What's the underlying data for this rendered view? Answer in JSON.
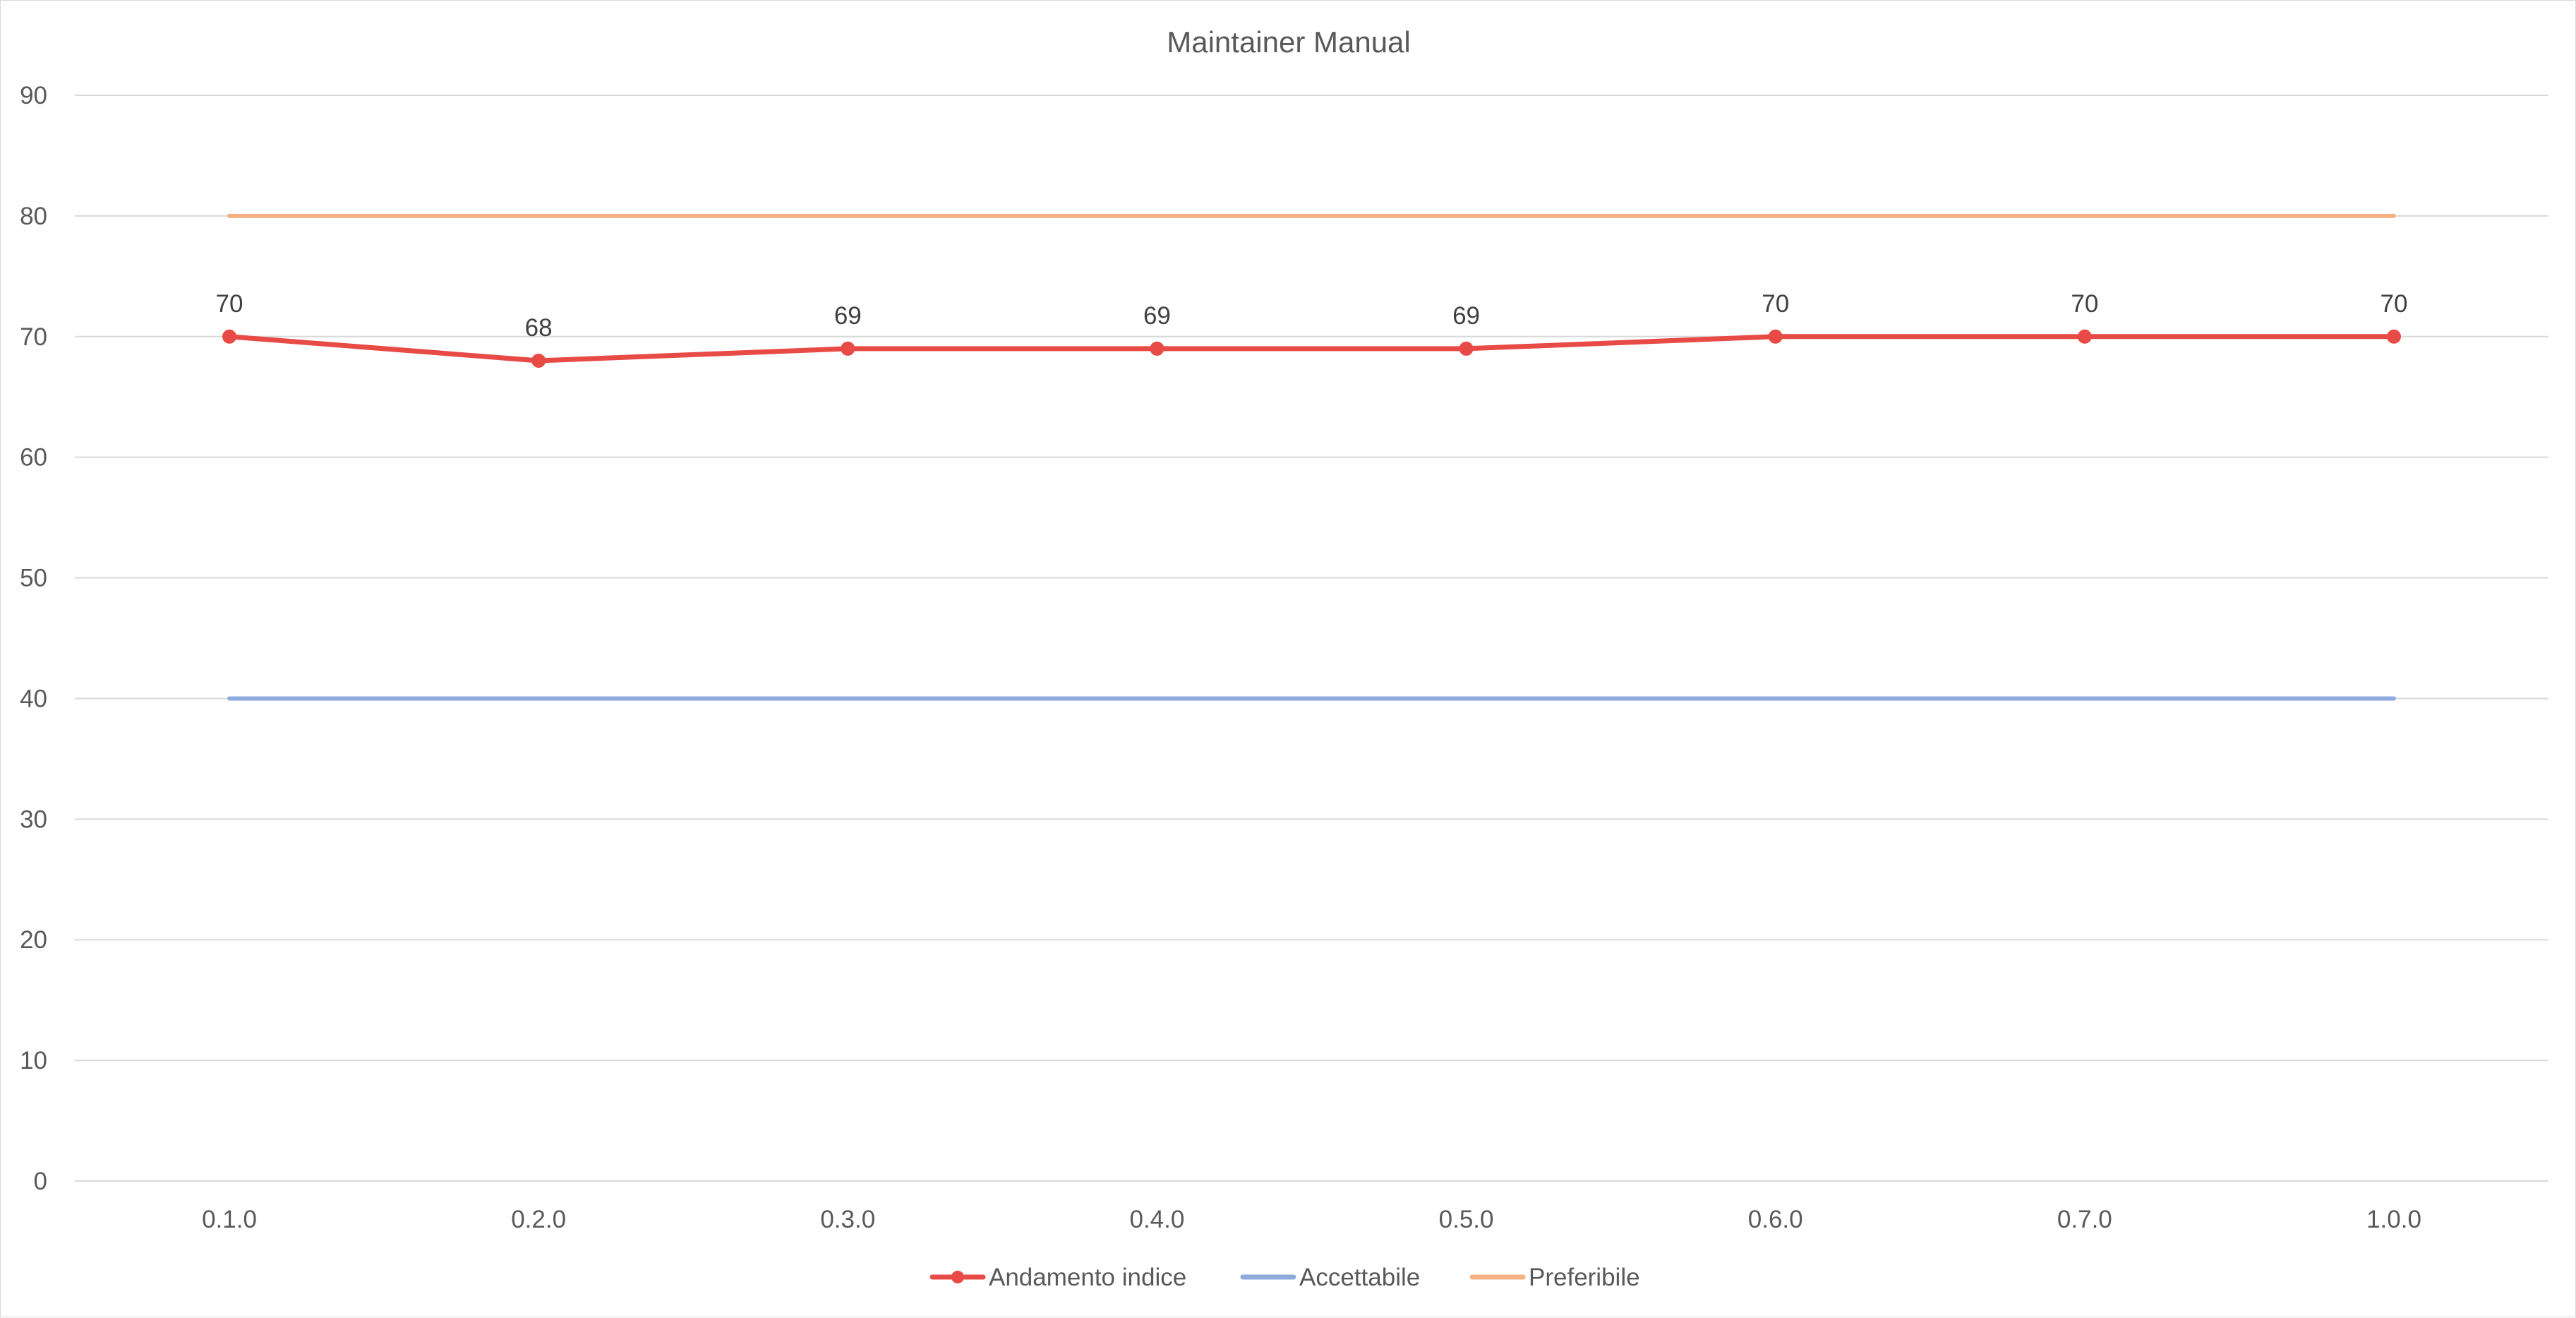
{
  "chart_data": {
    "type": "line",
    "title": "Maintainer Manual",
    "xlabel": "",
    "ylabel": "",
    "categories": [
      "0.1.0",
      "0.2.0",
      "0.3.0",
      "0.4.0",
      "0.5.0",
      "0.6.0",
      "0.7.0",
      "1.0.0"
    ],
    "ylim": [
      0,
      90
    ],
    "yticks": [
      0,
      10,
      20,
      30,
      40,
      50,
      60,
      70,
      80,
      90
    ],
    "grid": true,
    "legend_position": "bottom",
    "series": [
      {
        "name": "Andamento indice",
        "values": [
          70,
          68,
          69,
          69,
          69,
          70,
          70,
          70
        ],
        "color": "#e84a45",
        "markers": true,
        "data_labels": true
      },
      {
        "name": "Accettabile",
        "values": [
          40,
          40,
          40,
          40,
          40,
          40,
          40,
          40
        ],
        "color": "#8faadc",
        "markers": false,
        "data_labels": false
      },
      {
        "name": "Preferibile",
        "values": [
          80,
          80,
          80,
          80,
          80,
          80,
          80,
          80
        ],
        "color": "#f4b183",
        "markers": false,
        "data_labels": false
      }
    ]
  }
}
